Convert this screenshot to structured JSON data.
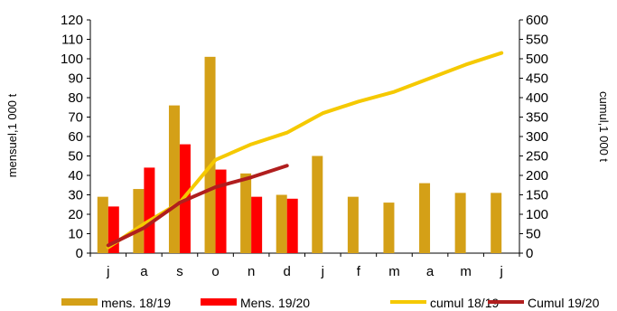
{
  "chart_data": {
    "type": "bar",
    "categories": [
      "j",
      "a",
      "s",
      "o",
      "n",
      "d",
      "j",
      "f",
      "m",
      "a",
      "m",
      "j"
    ],
    "ylabel": "mensuel,1 000 t",
    "y2label": "cumul,1 000 t",
    "ylim": [
      0,
      120
    ],
    "y2lim": [
      0,
      600
    ],
    "yticks": [
      "0",
      "10",
      "20",
      "30",
      "40",
      "50",
      "60",
      "70",
      "80",
      "90",
      "100",
      "110",
      "120"
    ],
    "y2ticks": [
      "0",
      "50",
      "100",
      "150",
      "200",
      "250",
      "300",
      "350",
      "400",
      "450",
      "500",
      "550",
      "600"
    ],
    "grid": false,
    "legend_position": "bottom",
    "series": [
      {
        "name": "mens. 18/19",
        "type": "bar",
        "axis": "left",
        "color": "#D4A017",
        "values": [
          29,
          33,
          76,
          101,
          41,
          30,
          50,
          29,
          26,
          36,
          31,
          31
        ]
      },
      {
        "name": "Mens. 19/20",
        "type": "bar",
        "axis": "left",
        "color": "#FF0000",
        "values": [
          24,
          44,
          56,
          43,
          29,
          28,
          null,
          null,
          null,
          null,
          null,
          null
        ]
      },
      {
        "name": "cumul 18/19",
        "type": "line",
        "axis": "right",
        "color": "#F5C900",
        "values": [
          15,
          75,
          130,
          240,
          280,
          310,
          360,
          390,
          415,
          450,
          485,
          515
        ]
      },
      {
        "name": "Cumul 19/20",
        "type": "line",
        "axis": "right",
        "color": "#B01E1E",
        "values": [
          20,
          65,
          130,
          170,
          195,
          225,
          null,
          null,
          null,
          null,
          null,
          null
        ]
      }
    ]
  }
}
